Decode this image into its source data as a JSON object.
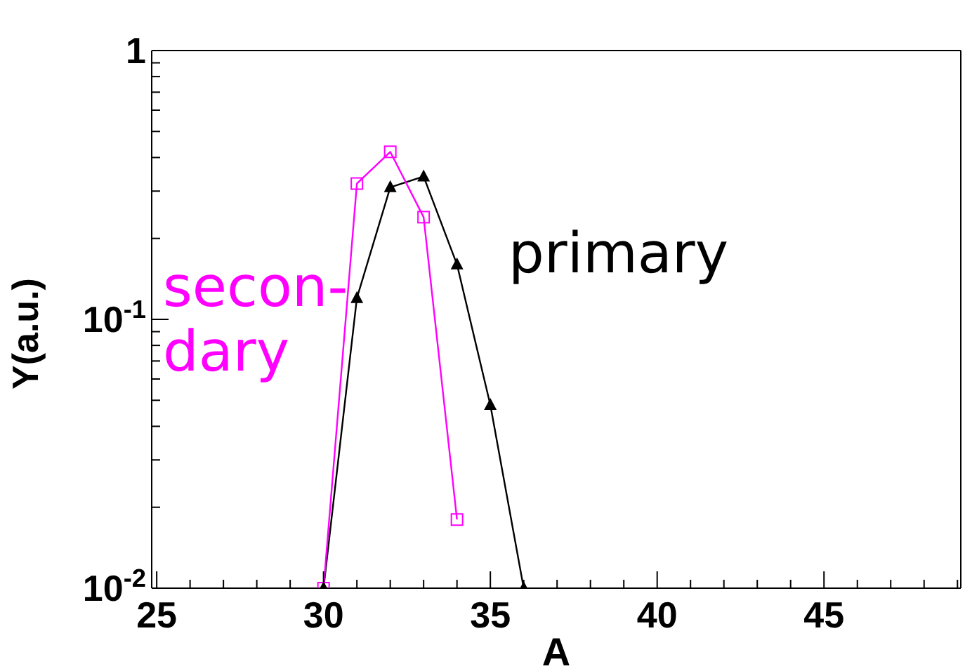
{
  "chart_data": {
    "type": "line",
    "xlabel": "A",
    "ylabel": "Y(a.u.)",
    "log": "y",
    "xlim": [
      24.85,
      49.1
    ],
    "xticks": [
      25,
      {
        "value": 26,
        "label": null
      },
      {
        "value": 27,
        "label": null
      },
      {
        "value": 28,
        "label": null
      },
      {
        "value": 29,
        "label": null
      },
      30,
      {
        "value": 31,
        "label": null
      },
      {
        "value": 32,
        "label": null
      },
      {
        "value": 33,
        "label": null
      },
      {
        "value": 34,
        "label": null
      },
      35,
      {
        "value": 36,
        "label": null
      },
      {
        "value": 37,
        "label": null
      },
      {
        "value": 38,
        "label": null
      },
      {
        "value": 39,
        "label": null
      },
      40,
      {
        "value": 41,
        "label": null
      },
      {
        "value": 42,
        "label": null
      },
      {
        "value": 43,
        "label": null
      },
      {
        "value": 44,
        "label": null
      },
      45,
      {
        "value": 46,
        "label": null
      },
      {
        "value": 47,
        "label": null
      },
      {
        "value": 48,
        "label": null
      },
      {
        "value": 49,
        "label": null
      }
    ],
    "ylim": [
      0.01,
      1
    ],
    "yticks": [
      {
        "value": 0.01,
        "label": "10$^{-2}$"
      },
      {
        "value": 0.02,
        "label": null
      },
      {
        "value": 0.03,
        "label": null
      },
      {
        "value": 0.04,
        "label": null
      },
      {
        "value": 0.05,
        "label": null
      },
      {
        "value": 0.06,
        "label": null
      },
      {
        "value": 0.07,
        "label": null
      },
      {
        "value": 0.08,
        "label": null
      },
      {
        "value": 0.09,
        "label": null
      },
      {
        "value": 0.1,
        "label": "10$^{-1}$"
      },
      {
        "value": 0.2,
        "label": null
      },
      {
        "value": 0.3,
        "label": null
      },
      {
        "value": 0.4,
        "label": null
      },
      {
        "value": 0.5,
        "label": null
      },
      {
        "value": 0.6,
        "label": null
      },
      {
        "value": 0.7,
        "label": null
      },
      {
        "value": 0.8,
        "label": null
      },
      {
        "value": 0.9,
        "label": null
      },
      1
    ],
    "series": [
      {
        "name": "primary",
        "color": "#000000",
        "marker": "triangle",
        "x": [
          30,
          31,
          32,
          33,
          34,
          35,
          36
        ],
        "values": [
          0.01,
          0.12,
          0.31,
          0.34,
          0.16,
          0.048,
          0.01
        ]
      },
      {
        "name": "secon-\ndary",
        "color": "#ff00ff",
        "marker": "square",
        "x": [
          30,
          31,
          32,
          33,
          34
        ],
        "values": [
          0.01,
          0.32,
          0.42,
          0.24,
          0.018
        ]
      }
    ]
  }
}
